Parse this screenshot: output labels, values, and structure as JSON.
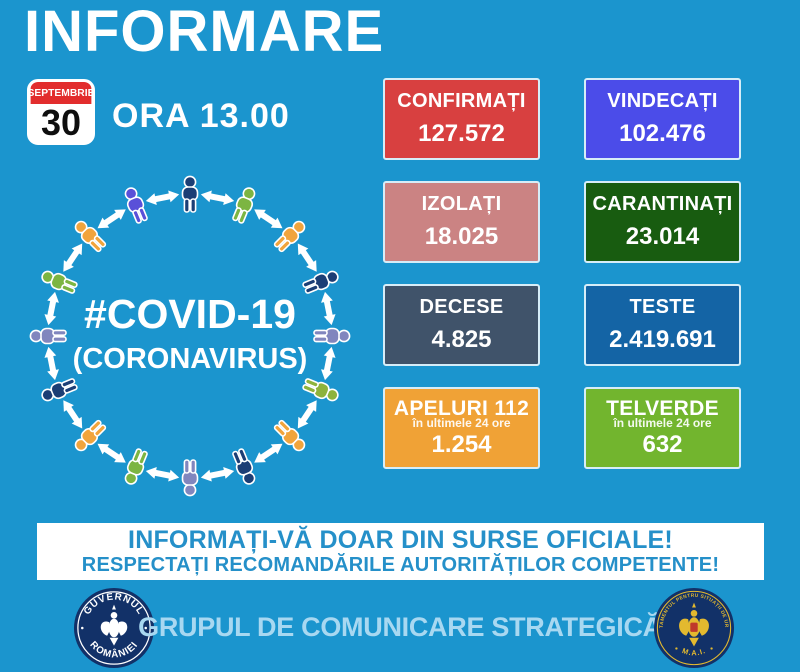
{
  "title": "INFORMARE",
  "date": {
    "month": "SEPTEMBRIE",
    "day": "30"
  },
  "time_label": "ORA 13.00",
  "graphic": {
    "hashtag_line": "#COVID-19",
    "subtitle_line": "(CORONAVIRUS)",
    "arrow_color": "#ffffff",
    "person_colors": [
      "#1c3e75",
      "#7cb542",
      "#f1a43c",
      "#1c3e75",
      "#8186be",
      "#8db33c",
      "#f1a43c",
      "#1c3e75",
      "#8186be",
      "#7cb542",
      "#f1a43c",
      "#1c3e75",
      "#8186be",
      "#7cb542",
      "#f1a43c",
      "#5a50d8"
    ]
  },
  "stats": {
    "boxes": [
      {
        "label": "CONFIRMAȚI",
        "value": "127.572",
        "color": "#d84040"
      },
      {
        "label": "VINDECAȚI",
        "value": "102.476",
        "color": "#4b4ce9"
      },
      {
        "label": "IZOLAȚI",
        "value": "18.025",
        "color": "#cb8383"
      },
      {
        "label": "CARANTINAȚI",
        "value": "23.014",
        "color": "#185c10"
      },
      {
        "label": "DECESE",
        "value": "4.825",
        "color": "#40536a"
      },
      {
        "label": "TESTE",
        "value": "2.419.691",
        "color": "#1464a5"
      },
      {
        "label": "APELURI 112",
        "sublabel": "în ultimele 24 ore",
        "value": "1.254",
        "color": "#f0a236"
      },
      {
        "label": "TELVERDE",
        "sublabel": "în ultimele 24 ore",
        "value": "632",
        "color": "#72b52e"
      }
    ]
  },
  "banner": {
    "line1": "INFORMAȚI-VĂ DOAR DIN SURSE OFICIALE!",
    "line2": "RESPECTAȚI RECOMANDĂRILE AUTORITĂȚILOR COMPETENTE!",
    "text_color": "#2590c9",
    "background": "#ffffff"
  },
  "footer": {
    "text": "GRUPUL DE COMUNICARE STRATEGICĂ",
    "left_logo": {
      "top_text": "GUVERNUL",
      "bottom_text": "ROMÂNIEI"
    },
    "right_logo": {
      "top_text": "DEPARTAMENTUL PENTRU SITUAȚII DE URGENȚĂ",
      "bottom_text": "M.A.I."
    }
  },
  "colors": {
    "background": "#1b95ce",
    "calendar_red": "#e22d2d",
    "footer_text": "#a8d8f1",
    "logo_navy": "#123168",
    "logo_gold": "#e3b92f"
  }
}
